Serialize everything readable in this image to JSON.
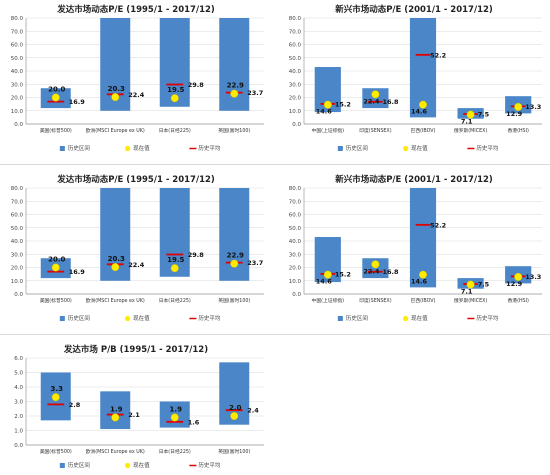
{
  "colors": {
    "range_bar": "#4a86c8",
    "current_marker": "#ffeb00",
    "average_line": "#e00000",
    "grid": "#d9d9d9",
    "axis": "#999999"
  },
  "chart_data": [
    {
      "type": "bar",
      "title": "发达市场动态P/E (1995/1 - 2017/12)",
      "categories": [
        "美国(标普500)",
        "欧洲(MSCI Europe ex UK)",
        "日本(日经225)",
        "英国(富时100)"
      ],
      "ylim": [
        0,
        80
      ],
      "yticks": [
        "0.0",
        "10.0",
        "20.0",
        "30.0",
        "40.0",
        "50.0",
        "60.0",
        "70.0",
        "80.0"
      ],
      "ytick_values": [
        0,
        10,
        20,
        30,
        40,
        50,
        60,
        70,
        80
      ],
      "grid": true,
      "legend_position": "bottom",
      "series": [
        {
          "name": "历史区间",
          "kind": "range",
          "low": [
            12,
            10,
            13,
            10
          ],
          "high": [
            27,
            80,
            80,
            80
          ]
        },
        {
          "name": "现在值",
          "kind": "marker",
          "values": [
            20.0,
            20.3,
            19.5,
            22.9
          ],
          "labels": [
            "20.0",
            "20.3",
            "19.5",
            "22.9"
          ]
        },
        {
          "name": "历史平均",
          "kind": "line",
          "values": [
            16.9,
            22.4,
            29.8,
            23.7
          ],
          "labels": [
            "16.9",
            "22.4",
            "29.8",
            "23.7"
          ]
        }
      ]
    },
    {
      "type": "bar",
      "title": "新兴市场动态P/E (2001/1 - 2017/12)",
      "categories": [
        "中国(上证综指)",
        "印度(SENSEX)",
        "巴西(IBOV)",
        "俄罗斯(MICEX)",
        "香港(HSI)"
      ],
      "ylim": [
        0,
        80
      ],
      "yticks": [
        "0.0",
        "10.0",
        "20.0",
        "30.0",
        "40.0",
        "50.0",
        "60.0",
        "70.0",
        "80.0"
      ],
      "ytick_values": [
        0,
        10,
        20,
        30,
        40,
        50,
        60,
        70,
        80
      ],
      "grid": true,
      "legend_position": "bottom",
      "series": [
        {
          "name": "历史区间",
          "kind": "range",
          "low": [
            9,
            12,
            5,
            4,
            8
          ],
          "high": [
            43,
            27,
            80,
            12,
            21
          ]
        },
        {
          "name": "现在值",
          "kind": "marker",
          "values": [
            14.6,
            22.4,
            14.6,
            7.1,
            12.9
          ],
          "labels": [
            "14.6",
            "22.4",
            "14.6",
            "7.1",
            "12.9"
          ]
        },
        {
          "name": "历史平均",
          "kind": "line",
          "values": [
            15.2,
            16.8,
            52.2,
            7.5,
            13.3
          ],
          "labels": [
            "15.2",
            "16.8",
            "52.2",
            "7.5",
            "13.3"
          ]
        }
      ]
    },
    {
      "type": "bar",
      "title": "发达市场动态P/E (1995/1 - 2017/12)",
      "categories": [
        "美国(标普500)",
        "欧洲(MSCI Europe ex UK)",
        "日本(日经225)",
        "英国(富时100)"
      ],
      "ylim": [
        0,
        80
      ],
      "yticks": [
        "0.0",
        "10.0",
        "20.0",
        "30.0",
        "40.0",
        "50.0",
        "60.0",
        "70.0",
        "80.0"
      ],
      "ytick_values": [
        0,
        10,
        20,
        30,
        40,
        50,
        60,
        70,
        80
      ],
      "grid": true,
      "legend_position": "bottom",
      "series": [
        {
          "name": "历史区间",
          "kind": "range",
          "low": [
            12,
            10,
            13,
            10
          ],
          "high": [
            27,
            80,
            80,
            80
          ]
        },
        {
          "name": "现在值",
          "kind": "marker",
          "values": [
            20.0,
            20.3,
            19.5,
            22.9
          ],
          "labels": [
            "20.0",
            "20.3",
            "19.5",
            "22.9"
          ]
        },
        {
          "name": "历史平均",
          "kind": "line",
          "values": [
            16.9,
            22.4,
            29.8,
            23.7
          ],
          "labels": [
            "16.9",
            "22.4",
            "29.8",
            "23.7"
          ]
        }
      ]
    },
    {
      "type": "bar",
      "title": "新兴市场动态P/E (2001/1 - 2017/12)",
      "categories": [
        "中国(上证综指)",
        "印度(SENSEX)",
        "巴西(IBOV)",
        "俄罗斯(MICEX)",
        "香港(HSI)"
      ],
      "ylim": [
        0,
        80
      ],
      "yticks": [
        "0.0",
        "10.0",
        "20.0",
        "30.0",
        "40.0",
        "50.0",
        "60.0",
        "70.0",
        "80.0"
      ],
      "ytick_values": [
        0,
        10,
        20,
        30,
        40,
        50,
        60,
        70,
        80
      ],
      "grid": true,
      "legend_position": "bottom",
      "series": [
        {
          "name": "历史区间",
          "kind": "range",
          "low": [
            9,
            12,
            5,
            4,
            8
          ],
          "high": [
            43,
            27,
            80,
            12,
            21
          ]
        },
        {
          "name": "现在值",
          "kind": "marker",
          "values": [
            14.6,
            22.4,
            14.6,
            7.1,
            12.9
          ],
          "labels": [
            "14.6",
            "22.4",
            "14.6",
            "7.1",
            "12.9"
          ]
        },
        {
          "name": "历史平均",
          "kind": "line",
          "values": [
            15.2,
            16.8,
            52.2,
            7.5,
            13.3
          ],
          "labels": [
            "15.2",
            "16.8",
            "52.2",
            "7.5",
            "13.3"
          ]
        }
      ]
    },
    {
      "type": "bar",
      "title": "发达市场 P/B (1995/1 - 2017/12)",
      "categories": [
        "美国(标普500)",
        "欧洲(MSCI Europe ex UK)",
        "日本(日经225)",
        "英国(富时100)"
      ],
      "ylim": [
        0,
        6
      ],
      "yticks": [
        "0.0",
        "1.0",
        "2.0",
        "3.0",
        "4.0",
        "5.0",
        "6.0"
      ],
      "ytick_values": [
        0,
        1,
        2,
        3,
        4,
        5,
        6
      ],
      "grid": true,
      "legend_position": "bottom",
      "series": [
        {
          "name": "历史区间",
          "kind": "range",
          "low": [
            1.7,
            1.1,
            1.2,
            1.4
          ],
          "high": [
            5.0,
            3.7,
            3.0,
            5.7
          ]
        },
        {
          "name": "现在值",
          "kind": "marker",
          "values": [
            3.3,
            1.9,
            1.9,
            2.0
          ],
          "labels": [
            "3.3",
            "1.9",
            "1.9",
            "2.0"
          ]
        },
        {
          "name": "历史平均",
          "kind": "line",
          "values": [
            2.8,
            2.1,
            1.6,
            2.4
          ],
          "labels": [
            "2.8",
            "2.1",
            "1.6",
            "2.4"
          ]
        }
      ]
    }
  ]
}
